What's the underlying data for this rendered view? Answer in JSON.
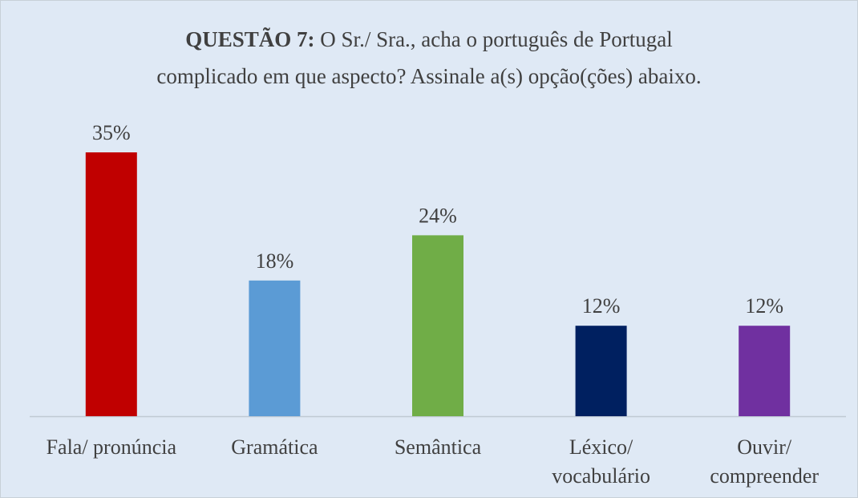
{
  "chart_data": {
    "type": "bar",
    "title_label": "QUESTÃO 7:",
    "title_lines": [
      "O Sr./ Sra., acha o português de Portugal",
      "complicado em que aspecto? Assinale a(s) opção(ções) abaixo."
    ],
    "categories": [
      [
        "Fala/ pronúncia"
      ],
      [
        "Gramática"
      ],
      [
        "Semântica"
      ],
      [
        "Léxico/",
        "vocabulário"
      ],
      [
        "Ouvir/",
        "compreender"
      ]
    ],
    "values": [
      35,
      18,
      24,
      12,
      12
    ],
    "value_labels": [
      "35%",
      "18%",
      "24%",
      "12%",
      "12%"
    ],
    "colors": [
      "#c00000",
      "#5b9bd5",
      "#70ad47",
      "#002060",
      "#7030a0"
    ]
  }
}
